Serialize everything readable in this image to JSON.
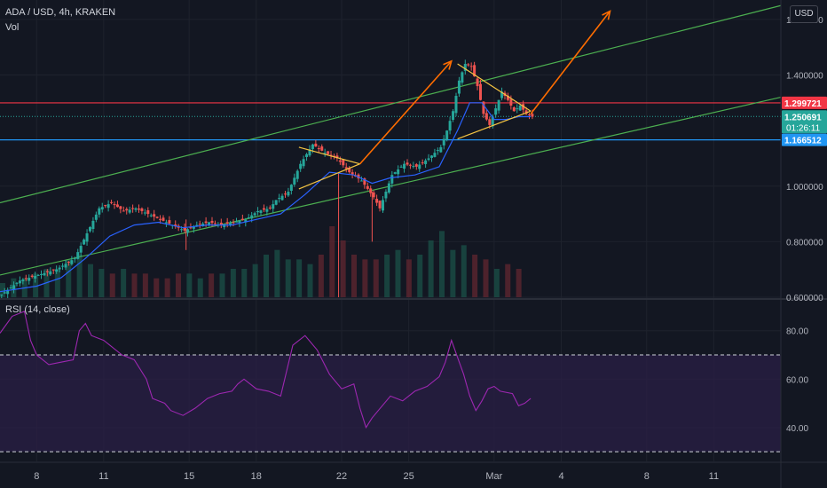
{
  "header": {
    "symbol_line": "ADA / USD, 4h, KRAKEN",
    "vol_label": "Vol",
    "rsi_label": "RSI (14, close)",
    "currency_button": "USD"
  },
  "colors": {
    "background": "#131722",
    "up": "#26a69a",
    "down": "#ef5350",
    "ma": "#2962ff",
    "trend_channel": "#4caf50",
    "triangle": "#f5c542",
    "arrow": "#ff6d00",
    "resistance": "#f23645",
    "support": "#2196f3",
    "rsi": "#9c27b0"
  },
  "chart_data": [
    {
      "type": "candlestick",
      "title": "ADA / USD, 4h, KRAKEN",
      "ylim": [
        0.6,
        1.67
      ],
      "y_ticks": [
        "1.600000",
        "1.400000",
        "1.000000",
        "0.800000",
        "0.600000"
      ],
      "x_ticks": [
        "8",
        "11",
        "15",
        "18",
        "22",
        "25",
        "Mar",
        "4",
        "8",
        "11"
      ],
      "price_labels": [
        {
          "value": 1.299721,
          "text": "1.299721",
          "color": "#f23645"
        },
        {
          "value": 1.250691,
          "text": "1.250691",
          "countdown": "01:26:11",
          "color": "#26a69a"
        },
        {
          "value": 1.166512,
          "text": "1.166512",
          "color": "#2196f3"
        }
      ],
      "horizontal_lines": [
        {
          "value": 1.299721,
          "style": "solid",
          "color": "#f23645"
        },
        {
          "value": 1.166512,
          "style": "solid",
          "color": "#2196f3"
        },
        {
          "value": 1.250691,
          "style": "dotted",
          "color": "#26a69a"
        }
      ],
      "price_path": [
        [
          0,
          0.61
        ],
        [
          3,
          0.66
        ],
        [
          6,
          0.68
        ],
        [
          9,
          0.7
        ],
        [
          12,
          0.74
        ],
        [
          14,
          0.83
        ],
        [
          16,
          0.92
        ],
        [
          18,
          0.94
        ],
        [
          20,
          0.91
        ],
        [
          22,
          0.92
        ],
        [
          24,
          0.9
        ],
        [
          26,
          0.88
        ],
        [
          28,
          0.86
        ],
        [
          30,
          0.84
        ],
        [
          32,
          0.86
        ],
        [
          34,
          0.87
        ],
        [
          36,
          0.86
        ],
        [
          38,
          0.87
        ],
        [
          40,
          0.88
        ],
        [
          42,
          0.91
        ],
        [
          44,
          0.92
        ],
        [
          45,
          0.95
        ],
        [
          47,
          0.98
        ],
        [
          49,
          1.08
        ],
        [
          51,
          1.15
        ],
        [
          53,
          1.12
        ],
        [
          55,
          1.1
        ],
        [
          57,
          1.05
        ],
        [
          59,
          1.02
        ],
        [
          61,
          0.96
        ],
        [
          62,
          0.92
        ],
        [
          64,
          1.04
        ],
        [
          66,
          1.08
        ],
        [
          68,
          1.07
        ],
        [
          70,
          1.1
        ],
        [
          72,
          1.14
        ],
        [
          73,
          1.2
        ],
        [
          74,
          1.27
        ],
        [
          75,
          1.38
        ],
        [
          76,
          1.44
        ],
        [
          77,
          1.43
        ],
        [
          78,
          1.36
        ],
        [
          79,
          1.26
        ],
        [
          80,
          1.22
        ],
        [
          81,
          1.28
        ],
        [
          82,
          1.34
        ],
        [
          83,
          1.31
        ],
        [
          84,
          1.27
        ],
        [
          85,
          1.29
        ],
        [
          86,
          1.26
        ],
        [
          87,
          1.25
        ]
      ],
      "ma_path": [
        [
          0,
          0.62
        ],
        [
          6,
          0.64
        ],
        [
          10,
          0.67
        ],
        [
          14,
          0.74
        ],
        [
          18,
          0.82
        ],
        [
          22,
          0.86
        ],
        [
          26,
          0.87
        ],
        [
          30,
          0.85
        ],
        [
          34,
          0.86
        ],
        [
          38,
          0.86
        ],
        [
          42,
          0.88
        ],
        [
          46,
          0.9
        ],
        [
          50,
          0.97
        ],
        [
          54,
          1.05
        ],
        [
          58,
          1.04
        ],
        [
          61,
          1.01
        ],
        [
          64,
          1.03
        ],
        [
          68,
          1.04
        ],
        [
          72,
          1.07
        ],
        [
          75,
          1.2
        ],
        [
          77,
          1.3
        ],
        [
          79,
          1.3
        ],
        [
          81,
          1.24
        ],
        [
          83,
          1.24
        ],
        [
          85,
          1.25
        ],
        [
          87,
          1.25
        ]
      ],
      "volume": [
        3,
        4,
        4,
        5,
        6,
        6,
        8,
        9,
        7,
        6,
        5,
        6,
        5,
        5,
        4,
        4,
        5,
        5,
        4,
        5,
        5,
        6,
        6,
        7,
        9,
        10,
        8,
        8,
        7,
        9,
        15,
        12,
        9,
        8,
        8,
        9,
        10,
        8,
        9,
        12,
        14,
        10,
        11,
        9,
        8,
        6,
        7,
        6
      ],
      "drawings": {
        "channel": [
          [
            [
              0,
              0.68
            ],
            [
              128,
              1.32
            ]
          ],
          [
            [
              0,
              0.94
            ],
            [
              128,
              1.65
            ]
          ]
        ],
        "triangles": [
          [
            [
              [
                49,
                1.14
              ],
              [
                59,
                1.08
              ]
            ],
            [
              [
                49,
                0.99
              ],
              [
                59,
                1.08
              ]
            ]
          ],
          [
            [
              [
                75,
                1.44
              ],
              [
                87,
                1.27
              ]
            ],
            [
              [
                75,
                1.17
              ],
              [
                87,
                1.27
              ]
            ]
          ]
        ],
        "arrows": [
          [
            [
              59,
              1.08
            ],
            [
              74,
              1.45
            ]
          ],
          [
            [
              87,
              1.26
            ],
            [
              100,
              1.63
            ]
          ]
        ]
      }
    },
    {
      "type": "line",
      "title": "RSI (14, close)",
      "ylim": [
        26,
        92
      ],
      "y_ticks": [
        "80.00",
        "60.00",
        "40.00"
      ],
      "band": [
        30,
        70
      ],
      "values": [
        [
          0,
          79
        ],
        [
          2,
          86
        ],
        [
          4,
          88
        ],
        [
          5,
          76
        ],
        [
          6,
          70
        ],
        [
          8,
          66
        ],
        [
          10,
          67
        ],
        [
          12,
          68
        ],
        [
          13,
          80
        ],
        [
          14,
          83
        ],
        [
          15,
          78
        ],
        [
          17,
          76
        ],
        [
          18,
          74
        ],
        [
          20,
          70
        ],
        [
          22,
          68
        ],
        [
          24,
          60
        ],
        [
          25,
          52
        ],
        [
          27,
          50
        ],
        [
          28,
          47
        ],
        [
          30,
          45
        ],
        [
          32,
          48
        ],
        [
          34,
          52
        ],
        [
          36,
          54
        ],
        [
          38,
          55
        ],
        [
          39,
          58
        ],
        [
          40,
          60
        ],
        [
          42,
          56
        ],
        [
          44,
          55
        ],
        [
          46,
          53
        ],
        [
          48,
          74
        ],
        [
          50,
          78
        ],
        [
          52,
          72
        ],
        [
          54,
          62
        ],
        [
          56,
          56
        ],
        [
          58,
          58
        ],
        [
          59,
          48
        ],
        [
          60,
          40
        ],
        [
          61,
          44
        ],
        [
          62,
          47
        ],
        [
          64,
          53
        ],
        [
          66,
          51
        ],
        [
          68,
          55
        ],
        [
          70,
          57
        ],
        [
          72,
          61
        ],
        [
          73,
          67
        ],
        [
          74,
          76
        ],
        [
          75,
          69
        ],
        [
          76,
          62
        ],
        [
          77,
          53
        ],
        [
          78,
          47
        ],
        [
          79,
          51
        ],
        [
          80,
          56
        ],
        [
          81,
          57
        ],
        [
          82,
          55
        ],
        [
          84,
          54
        ],
        [
          85,
          49
        ],
        [
          86,
          50
        ],
        [
          87,
          52
        ]
      ]
    }
  ]
}
